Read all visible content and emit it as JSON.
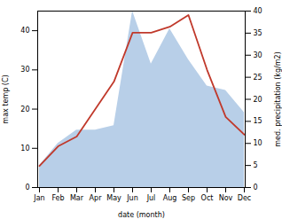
{
  "chart_data": {
    "type": "line",
    "xlabel": "date (month)",
    "ylabel": "max temp (C)",
    "y2label": "med. precipitation (kg/m2)",
    "categories": [
      "Jan",
      "Feb",
      "Mar",
      "Apr",
      "May",
      "Jun",
      "Jul",
      "Aug",
      "Sep",
      "Oct",
      "Nov",
      "Dec"
    ],
    "series": [
      {
        "type": "area",
        "color": "#b8cfe8",
        "axis": "y2",
        "values": [
          5,
          10,
          13,
          13,
          14,
          40,
          28,
          36,
          29,
          23,
          22,
          17
        ]
      },
      {
        "type": "line",
        "color": "#c0392b",
        "values": [
          5.5,
          10.5,
          13.0,
          20.0,
          27.0,
          39.5,
          39.5,
          41.0,
          44.0,
          30.0,
          18.0,
          13.5
        ]
      }
    ],
    "ylim": [
      0,
      45
    ],
    "yticks": [
      0,
      10,
      20,
      30,
      40
    ],
    "y2lim": [
      0,
      40
    ],
    "y2ticks": [
      0,
      5,
      10,
      15,
      20,
      25,
      30,
      35,
      40
    ]
  }
}
